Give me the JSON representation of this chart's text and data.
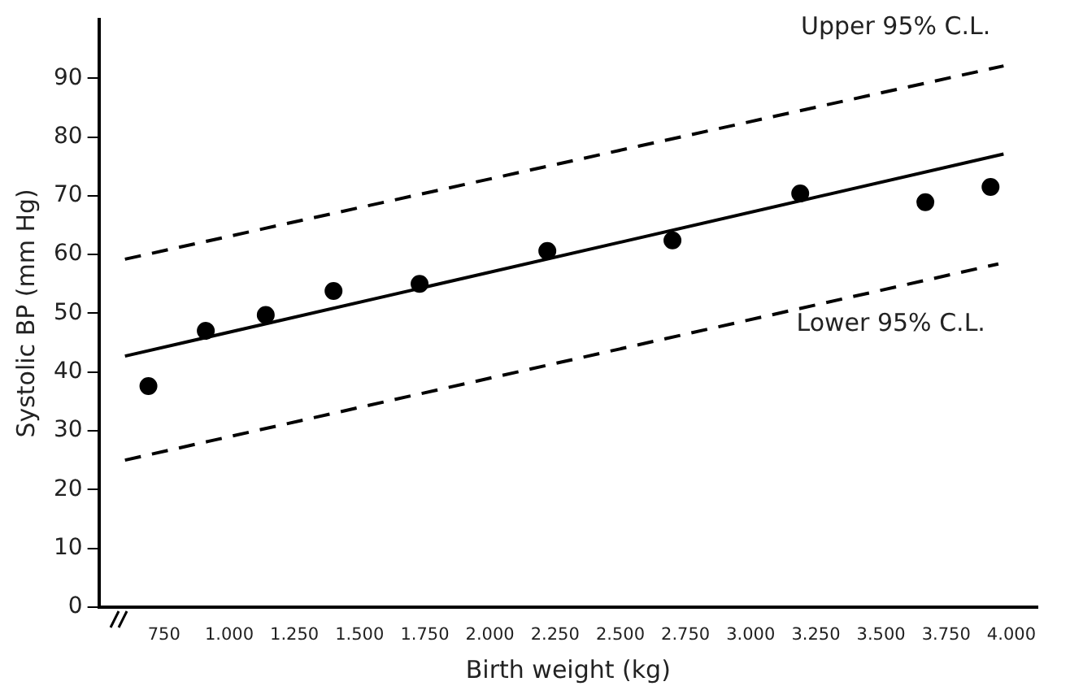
{
  "chart_data": {
    "type": "scatter",
    "xlabel": "Birth weight (kg)",
    "ylabel": "Systolic BP (mm Hg)",
    "xlim": [
      500,
      4100
    ],
    "ylim": [
      0,
      100
    ],
    "xticks": [
      {
        "value": 750,
        "label": "750"
      },
      {
        "value": 1000,
        "label": "1.000"
      },
      {
        "value": 1250,
        "label": "1.250"
      },
      {
        "value": 1500,
        "label": "1.500"
      },
      {
        "value": 1750,
        "label": "1.750"
      },
      {
        "value": 2000,
        "label": "2.000"
      },
      {
        "value": 2250,
        "label": "2.250"
      },
      {
        "value": 2500,
        "label": "2.500"
      },
      {
        "value": 2750,
        "label": "2.750"
      },
      {
        "value": 3000,
        "label": "3.000"
      },
      {
        "value": 3250,
        "label": "3.250"
      },
      {
        "value": 3500,
        "label": "3.500"
      },
      {
        "value": 3750,
        "label": "3.750"
      },
      {
        "value": 4000,
        "label": "4.000"
      }
    ],
    "yticks": [
      0,
      10,
      20,
      30,
      40,
      50,
      60,
      70,
      80,
      90
    ],
    "grid": false,
    "legend": false,
    "series": [
      {
        "color": "#000000",
        "marker": "circle",
        "x": [
          690,
          910,
          1140,
          1400,
          1730,
          2220,
          2700,
          3190,
          3670,
          3920
        ],
        "values": [
          37.6,
          47,
          49.7,
          53.8,
          55,
          60.6,
          62.4,
          70.4,
          68.9,
          71.5
        ]
      },
      {
        "type": "line",
        "color": "#000000",
        "marker": "none",
        "line_style": "solid",
        "x": [
          600,
          3970
        ],
        "values": [
          42.7,
          77.1
        ]
      },
      {
        "type": "line",
        "name": "Upper 95% C.L.",
        "color": "#000000",
        "marker": "none",
        "line_style": "dashed",
        "x": [
          600,
          3970
        ],
        "values": [
          59.2,
          92.1
        ]
      },
      {
        "type": "line",
        "name": "Lower 95% C.L.",
        "color": "#000000",
        "marker": "none",
        "line_style": "dashed",
        "x": [
          600,
          3950
        ],
        "values": [
          25,
          58.4
        ]
      }
    ]
  }
}
